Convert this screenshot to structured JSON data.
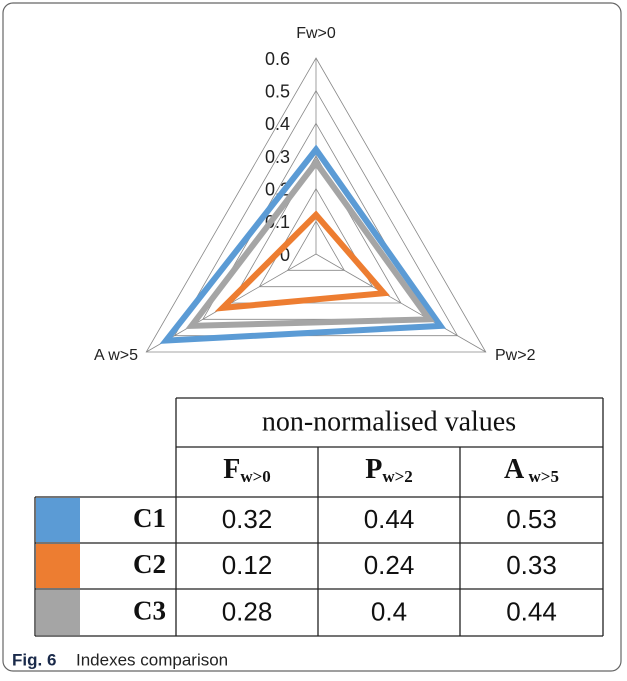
{
  "chart_data": {
    "type": "radar",
    "categories": [
      "Fw>0",
      "Pw>2",
      "A w>5"
    ],
    "series": [
      {
        "name": "C1",
        "color": "#5b9bd5",
        "values": [
          0.32,
          0.44,
          0.53
        ]
      },
      {
        "name": "C2",
        "color": "#ed7d31",
        "values": [
          0.12,
          0.24,
          0.33
        ]
      },
      {
        "name": "C3",
        "color": "#a5a5a5",
        "values": [
          0.28,
          0.4,
          0.44
        ]
      }
    ],
    "rlim": [
      0,
      0.6
    ],
    "rticks": [
      0,
      0.1,
      0.2,
      0.3,
      0.4,
      0.5,
      0.6
    ],
    "grid": true
  },
  "table": {
    "header": "non-normalised values",
    "columns": [
      {
        "main": "F",
        "sub": "w>0"
      },
      {
        "main": "P",
        "sub": "w>2"
      },
      {
        "main": "A",
        "sub": " w>5"
      }
    ]
  },
  "caption": {
    "label": "Fig. 6",
    "text": "Indexes comparison"
  }
}
